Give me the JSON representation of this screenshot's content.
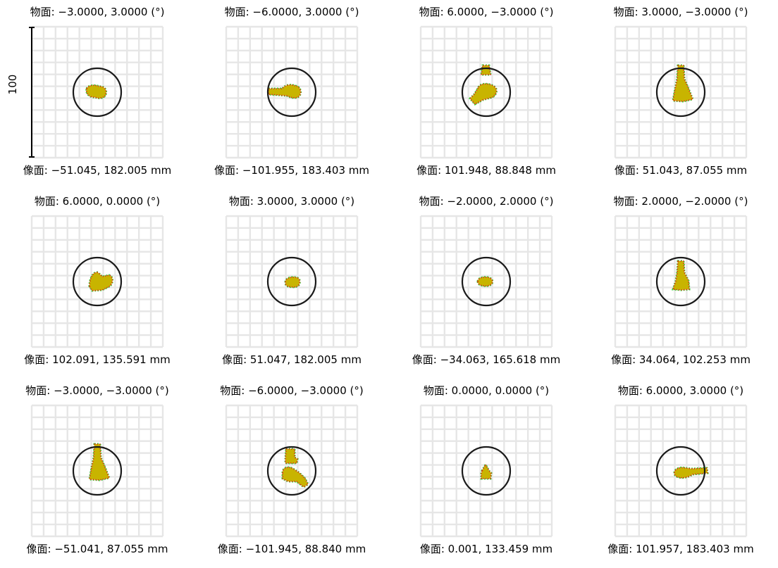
{
  "scale_bar": {
    "label": "100"
  },
  "colors": {
    "grid": "#e6e6e6",
    "airy_circle": "#1a1a1a",
    "spot_fill": "#c8b400",
    "spot_red": "#e03010",
    "spot_green": "#3ad03a"
  },
  "spots": [
    {
      "object": "物面: −3.0000, 3.0000 (°)",
      "image": "像面: −51.045, 182.005 mm",
      "shape": "blob-left"
    },
    {
      "object": "物面:  −6.0000, 3.0000 (°)",
      "image": "像面: −101.955, 183.403 mm",
      "shape": "blob-tail-left"
    },
    {
      "object": "物面: 6.0000, −3.0000 (°)",
      "image": "像面: 101.948, 88.848 mm",
      "shape": "split-top-tail"
    },
    {
      "object": "物面: 3.0000, −3.0000 (°)",
      "image": "像面: 51.043, 87.055 mm",
      "shape": "triangle-up"
    },
    {
      "object": "物面: 6.0000, 0.0000 (°)",
      "image": "像面: 102.091, 135.591 mm",
      "shape": "blob-right"
    },
    {
      "object": "物面: 3.0000, 3.0000 (°)",
      "image": "像面: 51.047, 182.005 mm",
      "shape": "small-right"
    },
    {
      "object": "物面: −2.0000, 2.0000 (°)",
      "image": "像面: −34.063, 165.618 mm",
      "shape": "small-left"
    },
    {
      "object": "物面: 2.0000, −2.0000 (°)",
      "image": "像面: 34.064, 102.253 mm",
      "shape": "triangle-up-small"
    },
    {
      "object": "物面: −3.0000, −3.0000 (°)",
      "image": "像面: −51.041, 87.055 mm",
      "shape": "triangle-up"
    },
    {
      "object": "物面: −6.0000, −3.0000 (°)",
      "image": "像面: −101.945, 88.840 mm",
      "shape": "split-top-tail-right"
    },
    {
      "object": "物面: 0.0000, 0.0000 (°)",
      "image": "像面: 0.001, 133.459 mm",
      "shape": "tiny-center"
    },
    {
      "object": "物面: 6.0000, 3.0000 (°)",
      "image": "像面: 101.957, 183.403 mm",
      "shape": "blob-tail-right"
    }
  ]
}
